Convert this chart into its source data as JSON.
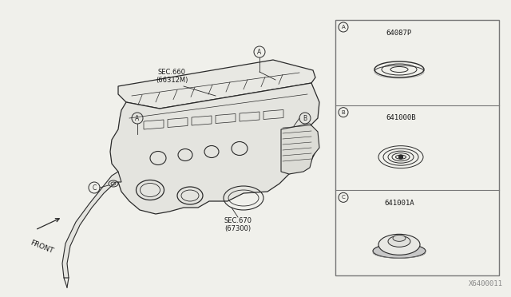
{
  "bg_color": "#f0f0eb",
  "line_color": "#2a2a2a",
  "border_color": "#777777",
  "text_color": "#1a1a1a",
  "part_A_number": "64087P",
  "part_B_number": "641000B",
  "part_C_number": "641001A",
  "sec_660": "SEC.660\n(66312M)",
  "sec_670": "SEC.670\n(67300)",
  "front_label": "FRONT",
  "watermark": "X6400011",
  "font_size_part": 6.5,
  "font_size_label": 6,
  "font_size_watermark": 6.5
}
